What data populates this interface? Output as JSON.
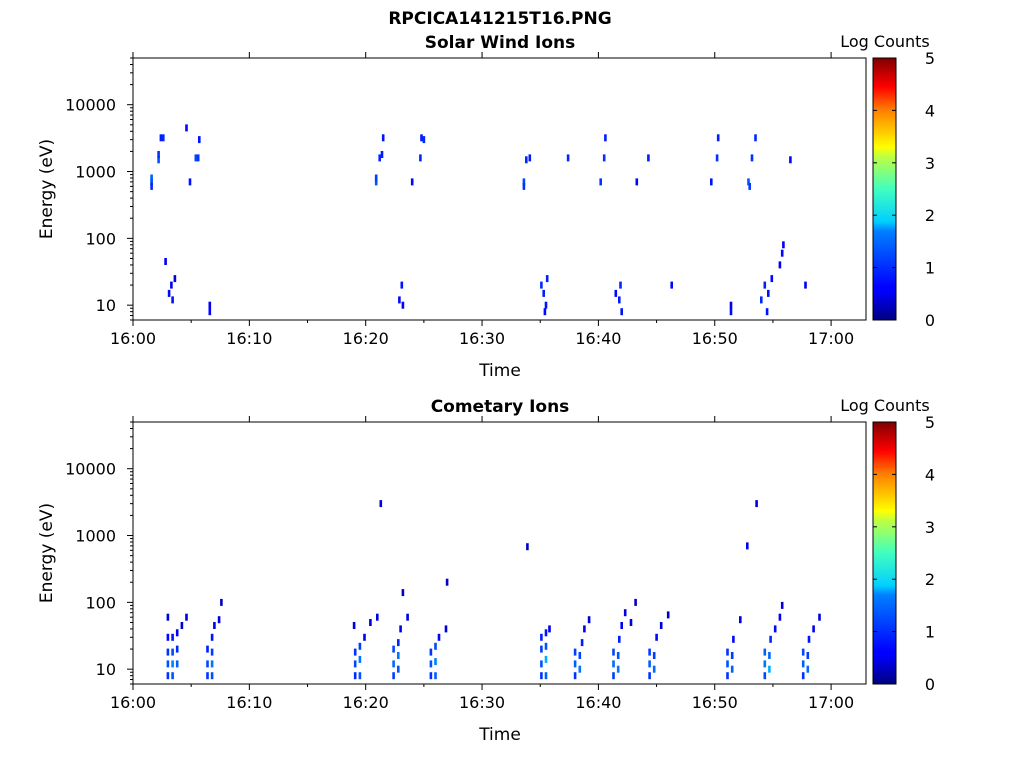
{
  "figure_title": "RPCICA141215T16.PNG",
  "colorbar_label": "Log Counts",
  "colorbar_ticks": [
    "0",
    "1",
    "2",
    "3",
    "4",
    "5"
  ],
  "chart_data": [
    {
      "type": "heatmap",
      "title": "Solar Wind Ions",
      "xlabel": "Time",
      "ylabel": "Energy (eV)",
      "x_ticks": [
        "16:00",
        "16:10",
        "16:20",
        "16:30",
        "16:40",
        "16:50",
        "17:00"
      ],
      "x_range_minutes": [
        0,
        63
      ],
      "y_ticks": [
        "10",
        "100",
        "1000",
        "10000"
      ],
      "y_scale": "log",
      "y_range": [
        6,
        50000
      ],
      "color_range": [
        0,
        5
      ],
      "colorscale": "jet",
      "cells": [
        [
          1.6,
          700,
          1.1
        ],
        [
          1.6,
          800,
          1.4
        ],
        [
          1.6,
          600,
          0.9
        ],
        [
          2.2,
          1500,
          1.3
        ],
        [
          2.2,
          1800,
          1.0
        ],
        [
          2.4,
          3200,
          0.8
        ],
        [
          2.6,
          3200,
          0.9
        ],
        [
          2.8,
          45,
          0.5
        ],
        [
          3.1,
          15,
          0.6
        ],
        [
          3.3,
          20,
          0.5
        ],
        [
          3.6,
          25,
          0.4
        ],
        [
          3.4,
          12,
          0.7
        ],
        [
          4.6,
          4500,
          0.6
        ],
        [
          4.9,
          700,
          0.7
        ],
        [
          5.4,
          1600,
          1.2
        ],
        [
          5.6,
          1600,
          1.0
        ],
        [
          5.7,
          3000,
          0.7
        ],
        [
          6.6,
          8,
          0.6
        ],
        [
          6.6,
          10,
          0.5
        ],
        [
          20.9,
          700,
          1.3
        ],
        [
          20.9,
          800,
          1.1
        ],
        [
          21.2,
          1600,
          0.9
        ],
        [
          21.4,
          1800,
          0.8
        ],
        [
          21.5,
          3200,
          0.7
        ],
        [
          22.9,
          12,
          0.6
        ],
        [
          23.1,
          20,
          0.7
        ],
        [
          23.2,
          10,
          0.5
        ],
        [
          24.0,
          700,
          0.6
        ],
        [
          24.7,
          1600,
          0.9
        ],
        [
          24.8,
          3200,
          0.8
        ],
        [
          25.0,
          3000,
          0.9
        ],
        [
          33.6,
          700,
          1.2
        ],
        [
          33.6,
          600,
          1.0
        ],
        [
          33.8,
          1500,
          0.9
        ],
        [
          34.1,
          1600,
          0.8
        ],
        [
          35.1,
          20,
          0.9
        ],
        [
          35.3,
          15,
          0.8
        ],
        [
          35.5,
          10,
          0.7
        ],
        [
          35.6,
          25,
          0.8
        ],
        [
          35.4,
          8,
          0.6
        ],
        [
          37.4,
          1600,
          0.9
        ],
        [
          40.2,
          700,
          1.0
        ],
        [
          40.5,
          1600,
          1.0
        ],
        [
          40.6,
          3200,
          0.8
        ],
        [
          41.5,
          15,
          0.6
        ],
        [
          41.8,
          12,
          0.8
        ],
        [
          41.9,
          20,
          0.9
        ],
        [
          42.0,
          8,
          0.7
        ],
        [
          43.3,
          700,
          0.6
        ],
        [
          44.3,
          1600,
          0.8
        ],
        [
          46.3,
          20,
          0.6
        ],
        [
          49.7,
          700,
          0.7
        ],
        [
          50.2,
          1600,
          1.0
        ],
        [
          50.3,
          3200,
          0.8
        ],
        [
          51.4,
          10,
          0.5
        ],
        [
          51.4,
          8,
          0.6
        ],
        [
          52.9,
          700,
          1.3
        ],
        [
          53.0,
          600,
          1.1
        ],
        [
          53.2,
          1600,
          1.0
        ],
        [
          53.5,
          3200,
          0.9
        ],
        [
          54.0,
          12,
          0.9
        ],
        [
          54.3,
          20,
          0.8
        ],
        [
          54.6,
          15,
          0.7
        ],
        [
          54.9,
          25,
          0.6
        ],
        [
          54.5,
          8,
          0.7
        ],
        [
          55.6,
          40,
          0.5
        ],
        [
          55.8,
          60,
          0.6
        ],
        [
          55.9,
          80,
          0.5
        ],
        [
          56.5,
          1500,
          0.6
        ],
        [
          57.8,
          20,
          0.5
        ]
      ]
    },
    {
      "type": "heatmap",
      "title": "Cometary Ions",
      "xlabel": "Time",
      "ylabel": "Energy (eV)",
      "x_ticks": [
        "16:00",
        "16:10",
        "16:20",
        "16:30",
        "16:40",
        "16:50",
        "17:00"
      ],
      "x_range_minutes": [
        0,
        63
      ],
      "y_ticks": [
        "10",
        "100",
        "1000",
        "10000"
      ],
      "y_scale": "log",
      "y_range": [
        6,
        50000
      ],
      "color_range": [
        0,
        5
      ],
      "colorscale": "jet",
      "cells": [
        [
          3.0,
          8,
          1.0
        ],
        [
          3.0,
          12,
          1.3
        ],
        [
          3.0,
          18,
          1.0
        ],
        [
          3.0,
          30,
          0.6
        ],
        [
          3.0,
          60,
          0.4
        ],
        [
          3.4,
          8,
          1.3
        ],
        [
          3.4,
          12,
          1.7
        ],
        [
          3.4,
          18,
          1.2
        ],
        [
          3.4,
          30,
          0.7
        ],
        [
          3.8,
          12,
          1.4
        ],
        [
          3.8,
          20,
          0.9
        ],
        [
          3.8,
          35,
          0.5
        ],
        [
          4.2,
          45,
          0.4
        ],
        [
          4.6,
          60,
          0.4
        ],
        [
          6.4,
          8,
          1.0
        ],
        [
          6.4,
          12,
          1.2
        ],
        [
          6.4,
          20,
          0.8
        ],
        [
          6.8,
          8,
          1.3
        ],
        [
          6.8,
          12,
          1.6
        ],
        [
          6.8,
          18,
          1.1
        ],
        [
          6.8,
          30,
          0.7
        ],
        [
          7.0,
          45,
          0.5
        ],
        [
          7.4,
          55,
          0.4
        ],
        [
          7.6,
          100,
          0.3
        ],
        [
          19.1,
          8,
          0.9
        ],
        [
          19.1,
          12,
          1.2
        ],
        [
          19.1,
          18,
          1.0
        ],
        [
          19.0,
          45,
          0.4
        ],
        [
          19.5,
          8,
          1.3
        ],
        [
          19.5,
          14,
          1.6
        ],
        [
          19.5,
          22,
          1.1
        ],
        [
          19.9,
          30,
          0.5
        ],
        [
          20.4,
          50,
          0.4
        ],
        [
          21.0,
          60,
          0.4
        ],
        [
          21.3,
          3000,
          0.4
        ],
        [
          22.4,
          8,
          1.1
        ],
        [
          22.4,
          12,
          1.5
        ],
        [
          22.4,
          20,
          1.2
        ],
        [
          22.8,
          10,
          1.3
        ],
        [
          22.8,
          16,
          1.6
        ],
        [
          22.8,
          25,
          0.9
        ],
        [
          23.0,
          40,
          0.5
        ],
        [
          23.2,
          140,
          0.3
        ],
        [
          23.6,
          60,
          0.4
        ],
        [
          25.6,
          8,
          1.0
        ],
        [
          25.6,
          12,
          1.3
        ],
        [
          25.6,
          18,
          1.0
        ],
        [
          26.0,
          8,
          1.4
        ],
        [
          26.0,
          13,
          1.7
        ],
        [
          26.0,
          22,
          1.2
        ],
        [
          26.3,
          30,
          0.6
        ],
        [
          26.9,
          40,
          0.4
        ],
        [
          27.0,
          200,
          0.3
        ],
        [
          33.9,
          680,
          0.3
        ],
        [
          35.1,
          8,
          1.0
        ],
        [
          35.1,
          12,
          1.3
        ],
        [
          35.1,
          20,
          1.1
        ],
        [
          35.1,
          30,
          0.8
        ],
        [
          35.5,
          8,
          1.4
        ],
        [
          35.5,
          14,
          1.8
        ],
        [
          35.5,
          22,
          1.3
        ],
        [
          35.5,
          35,
          0.7
        ],
        [
          35.8,
          40,
          0.5
        ],
        [
          38.0,
          8,
          1.0
        ],
        [
          38.0,
          12,
          1.4
        ],
        [
          38.0,
          18,
          1.1
        ],
        [
          38.4,
          10,
          1.6
        ],
        [
          38.4,
          16,
          1.2
        ],
        [
          38.6,
          25,
          0.8
        ],
        [
          38.8,
          40,
          0.5
        ],
        [
          39.2,
          55,
          0.4
        ],
        [
          41.3,
          8,
          1.1
        ],
        [
          41.3,
          12,
          1.5
        ],
        [
          41.3,
          18,
          1.2
        ],
        [
          41.7,
          10,
          1.6
        ],
        [
          41.7,
          16,
          1.3
        ],
        [
          41.8,
          28,
          0.8
        ],
        [
          42.0,
          45,
          0.5
        ],
        [
          42.3,
          70,
          0.4
        ],
        [
          42.8,
          50,
          0.4
        ],
        [
          43.2,
          100,
          0.3
        ],
        [
          44.4,
          8,
          1.0
        ],
        [
          44.4,
          12,
          1.4
        ],
        [
          44.4,
          18,
          1.1
        ],
        [
          44.8,
          10,
          1.5
        ],
        [
          44.8,
          16,
          1.1
        ],
        [
          45.0,
          30,
          0.6
        ],
        [
          45.4,
          45,
          0.4
        ],
        [
          46.0,
          65,
          0.3
        ],
        [
          51.1,
          8,
          1.0
        ],
        [
          51.1,
          12,
          1.3
        ],
        [
          51.1,
          18,
          1.0
        ],
        [
          51.5,
          10,
          1.4
        ],
        [
          51.5,
          16,
          1.1
        ],
        [
          51.6,
          28,
          0.6
        ],
        [
          52.2,
          55,
          0.4
        ],
        [
          52.8,
          700,
          0.5
        ],
        [
          53.6,
          3000,
          0.4
        ],
        [
          54.3,
          8,
          1.2
        ],
        [
          54.3,
          12,
          1.6
        ],
        [
          54.3,
          18,
          1.4
        ],
        [
          54.7,
          10,
          1.8
        ],
        [
          54.7,
          16,
          1.5
        ],
        [
          54.8,
          28,
          0.9
        ],
        [
          55.2,
          40,
          0.6
        ],
        [
          55.6,
          60,
          0.5
        ],
        [
          55.8,
          90,
          0.4
        ],
        [
          57.6,
          8,
          1.0
        ],
        [
          57.6,
          12,
          1.4
        ],
        [
          57.6,
          18,
          1.2
        ],
        [
          58.0,
          10,
          1.5
        ],
        [
          58.0,
          16,
          1.1
        ],
        [
          58.1,
          28,
          0.7
        ],
        [
          58.5,
          40,
          0.5
        ],
        [
          59.0,
          60,
          0.4
        ]
      ]
    }
  ]
}
